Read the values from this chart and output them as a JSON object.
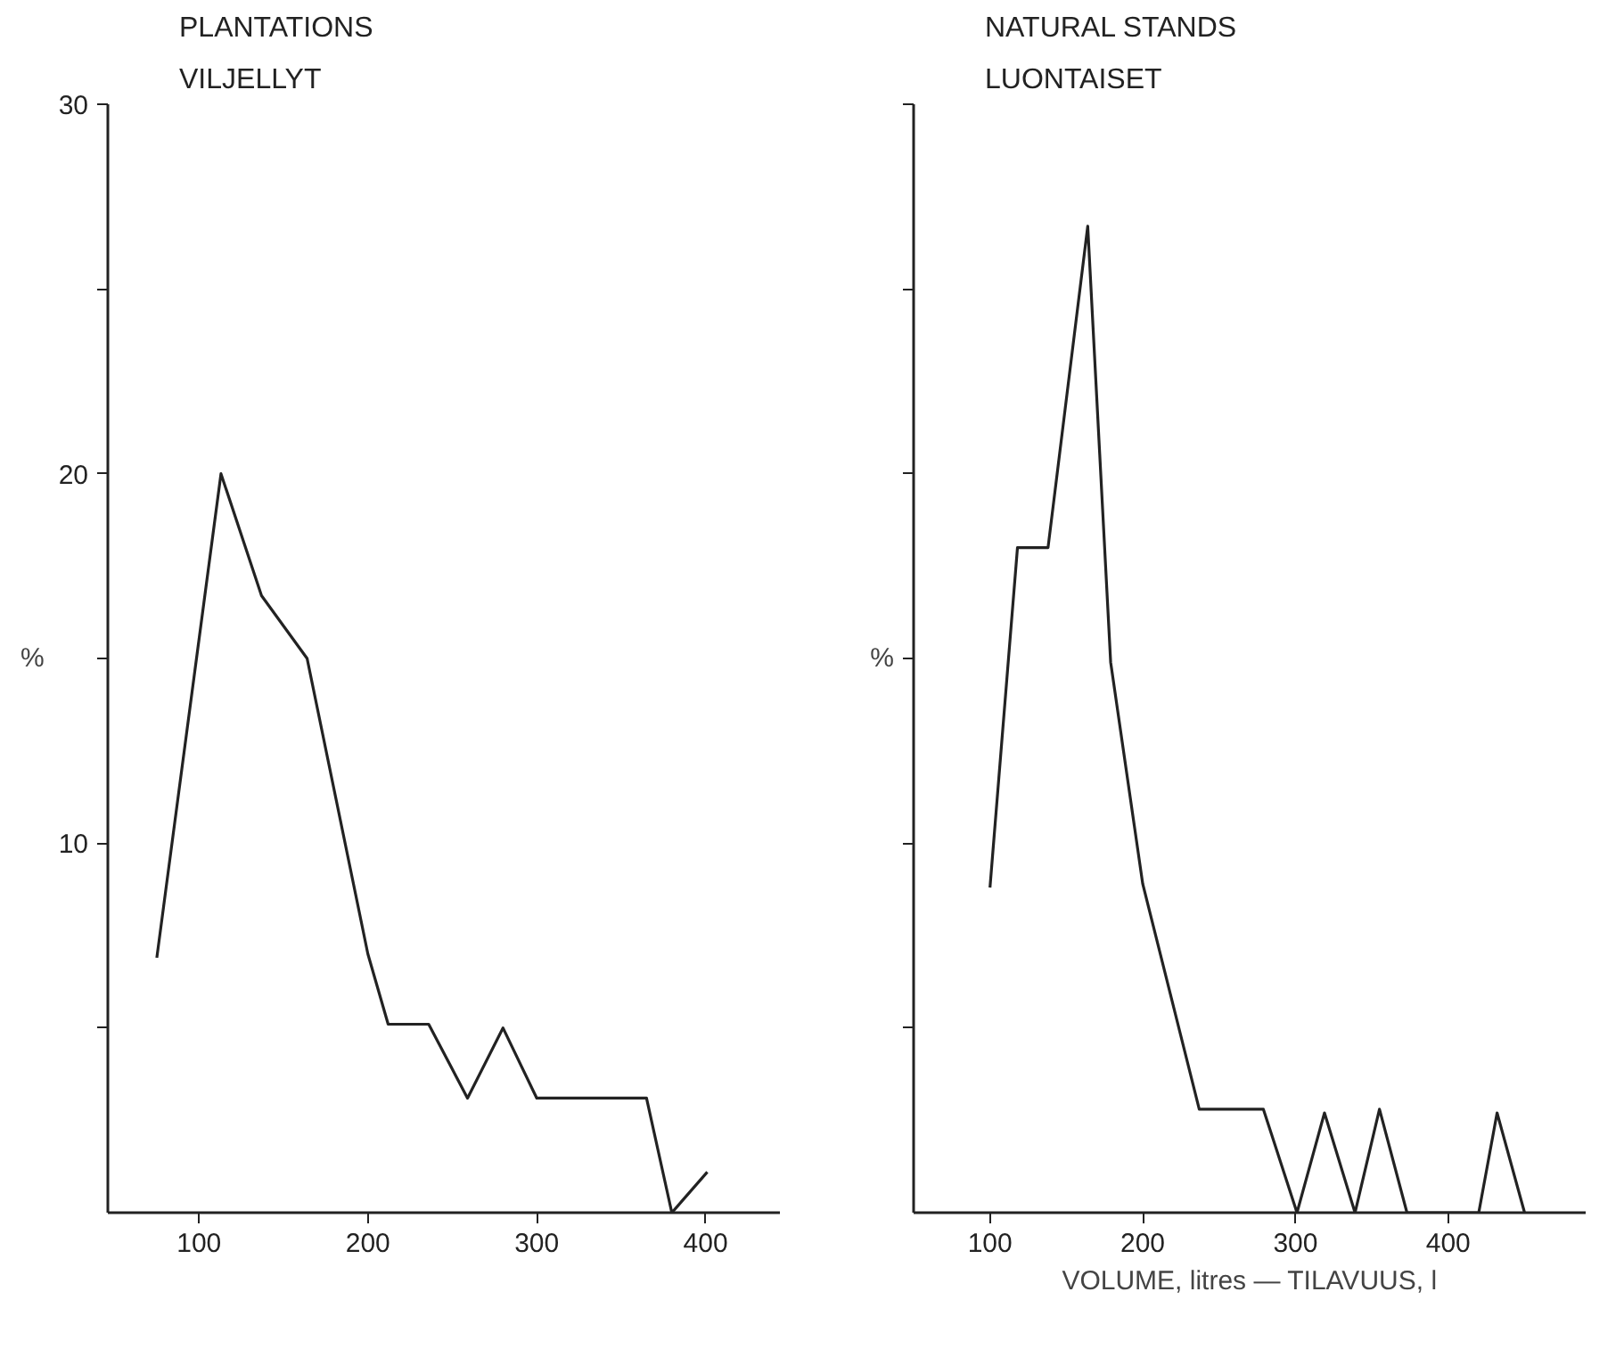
{
  "chart_data": [
    {
      "type": "line",
      "title": "PLANTATIONS",
      "subtitle": "VILJELLYT",
      "ylabel": "%",
      "x": [
        75,
        113,
        137,
        164,
        200,
        212,
        236,
        259,
        280,
        300,
        365,
        380,
        401
      ],
      "series": [
        {
          "color": "#222222",
          "values": [
            6.9,
            20,
            16.7,
            15.0,
            7.0,
            5.1,
            5.1,
            3.1,
            5.0,
            3.1,
            3.1,
            0,
            1.1
          ]
        }
      ],
      "xlim": [
        46,
        444
      ],
      "xticks": [
        100,
        200,
        300,
        400
      ],
      "ylim": [
        0,
        30
      ],
      "yticks": [
        {
          "value": 5,
          "label": null
        },
        10,
        {
          "value": 15,
          "label": null
        },
        20,
        {
          "value": 25,
          "label": null
        },
        30
      ],
      "grid": false
    },
    {
      "type": "line",
      "title": "NATURAL STANDS",
      "subtitle": "LUONTAISET",
      "ylabel": "%",
      "xlabel": "VOLUME, litres — TILAVUUS, l",
      "x": [
        100,
        118,
        138,
        164,
        179,
        200,
        237,
        279,
        301,
        319,
        339,
        355,
        373,
        420,
        432,
        450
      ],
      "series": [
        {
          "color": "#222222",
          "values": [
            8.8,
            18,
            18,
            26.7,
            14.9,
            8.9,
            2.8,
            2.8,
            0,
            2.7,
            0,
            2.8,
            0,
            0,
            2.7,
            0
          ]
        }
      ],
      "xlim": [
        50,
        490
      ],
      "xticks": [
        100,
        200,
        300,
        400
      ],
      "ylim": [
        0,
        30
      ],
      "yticks": [
        {
          "value": 5,
          "label": null
        },
        {
          "value": 10,
          "label": null
        },
        {
          "value": 15,
          "label": null
        },
        {
          "value": 20,
          "label": null
        },
        {
          "value": 25,
          "label": null
        },
        {
          "value": 30,
          "label": null
        }
      ],
      "tick_labels": "x",
      "grid": false
    }
  ]
}
